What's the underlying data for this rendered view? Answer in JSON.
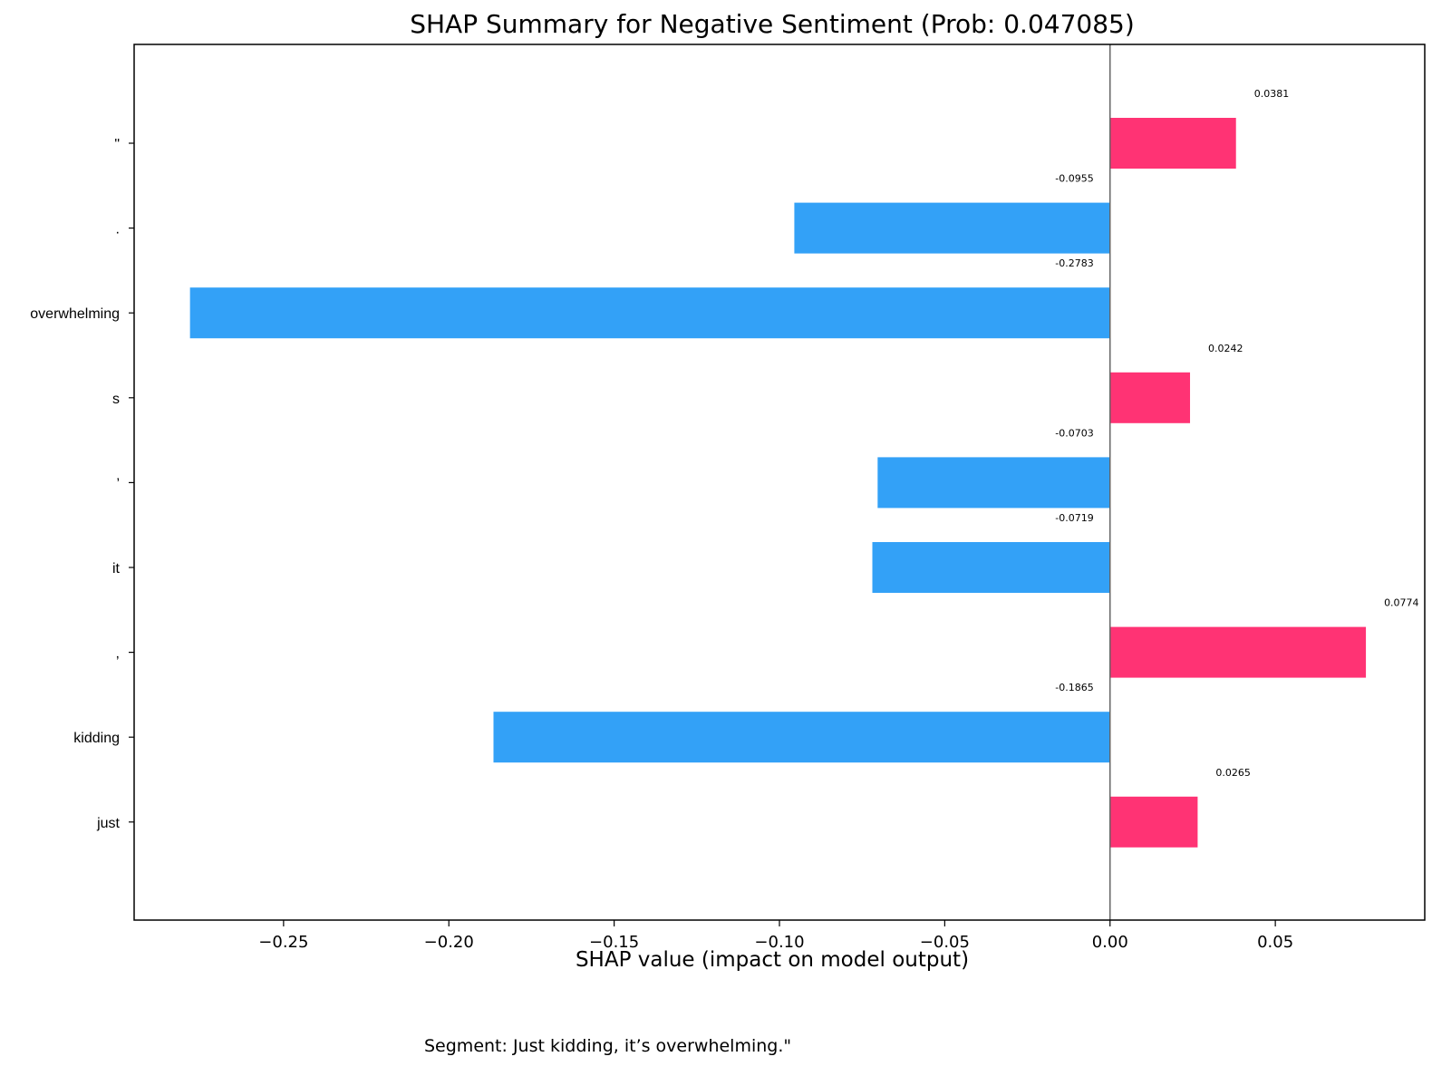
{
  "chart_data": {
    "type": "bar",
    "orientation": "horizontal",
    "title": "SHAP Summary for Negative Sentiment (Prob: 0.047085)",
    "xlabel": "SHAP value (impact on model output)",
    "ylabel": "",
    "categories": [
      "\"",
      ".",
      "overwhelming",
      "s",
      "’",
      "it",
      ",",
      "kidding",
      "just"
    ],
    "values": [
      0.0381,
      -0.0955,
      -0.2783,
      0.0242,
      -0.0703,
      -0.0719,
      0.0774,
      -0.1865,
      0.0265
    ],
    "value_labels": [
      "0.0381",
      "-0.0955",
      "-0.2783",
      "0.0242",
      "-0.0703",
      "-0.0719",
      "0.0774",
      "-0.1865",
      "0.0265"
    ],
    "xlim": [
      -0.2952,
      0.0952
    ],
    "xticks": [
      -0.25,
      -0.2,
      -0.15,
      -0.1,
      -0.05,
      0.0,
      0.05
    ],
    "xtick_labels": [
      "−0.25",
      "−0.20",
      "−0.15",
      "−0.10",
      "−0.05",
      "0.00",
      "0.05"
    ],
    "grid": false,
    "colors": {
      "positive": "#ff3374",
      "negative": "#33a1f7",
      "zero_line": "#666666",
      "axis": "#000000"
    }
  },
  "caption": "Segment: Just kidding, it’s overwhelming.\""
}
